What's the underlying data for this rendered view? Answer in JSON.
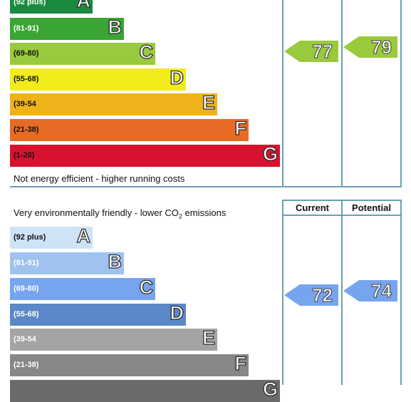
{
  "chart_data": [
    {
      "type": "bar",
      "bands": [
        {
          "letter": "A",
          "range": "(92 plus)",
          "color": "#198a3e",
          "range_color": "#ffffff"
        },
        {
          "letter": "B",
          "range": "(81-91)",
          "color": "#3aa535",
          "range_color": "#ffffff"
        },
        {
          "letter": "C",
          "range": "(69-80)",
          "color": "#99c93c",
          "range_color": "#111111"
        },
        {
          "letter": "D",
          "range": "(55-68)",
          "color": "#f2ec1b",
          "range_color": "#111111"
        },
        {
          "letter": "E",
          "range": "(39-54",
          "color": "#f0b21a",
          "range_color": "#111111"
        },
        {
          "letter": "F",
          "range": "(21-38)",
          "color": "#e66b24",
          "range_color": "#111111"
        },
        {
          "letter": "G",
          "range": "(1-20)",
          "color": "#d81130",
          "range_color": "#111111"
        }
      ],
      "bottom_caption": "Not energy efficient - higher running costs",
      "current": {
        "value": 77,
        "band": "C",
        "color": "#99c93c"
      },
      "potential": {
        "value": 79,
        "band": "C",
        "color": "#99c93c"
      }
    },
    {
      "type": "bar",
      "top_caption": "Very environmentally friendly - lower CO",
      "top_caption_sub": "2",
      "top_caption_tail": " emissions",
      "column_headers": {
        "current": "Current",
        "potential": "Potential"
      },
      "bands": [
        {
          "letter": "A",
          "range": "(92 plus)",
          "color": "#cfe3f7",
          "range_color": "#111111"
        },
        {
          "letter": "B",
          "range": "(81-91)",
          "color": "#9fc2ef",
          "range_color": "#ffffff"
        },
        {
          "letter": "C",
          "range": "(69-80)",
          "color": "#76a4ee",
          "range_color": "#ffffff"
        },
        {
          "letter": "D",
          "range": "(55-68)",
          "color": "#5a88c8",
          "range_color": "#ffffff"
        },
        {
          "letter": "E",
          "range": "(39-54",
          "color": "#a4a4a4",
          "range_color": "#ffffff"
        },
        {
          "letter": "F",
          "range": "(21-38)",
          "color": "#878787",
          "range_color": "#ffffff"
        },
        {
          "letter": "G",
          "range": "",
          "color": "#6b6b6b",
          "range_color": "#ffffff"
        }
      ],
      "current": {
        "value": 72,
        "band": "C",
        "color": "#76a4ee"
      },
      "potential": {
        "value": 74,
        "band": "C",
        "color": "#76a4ee"
      }
    }
  ]
}
